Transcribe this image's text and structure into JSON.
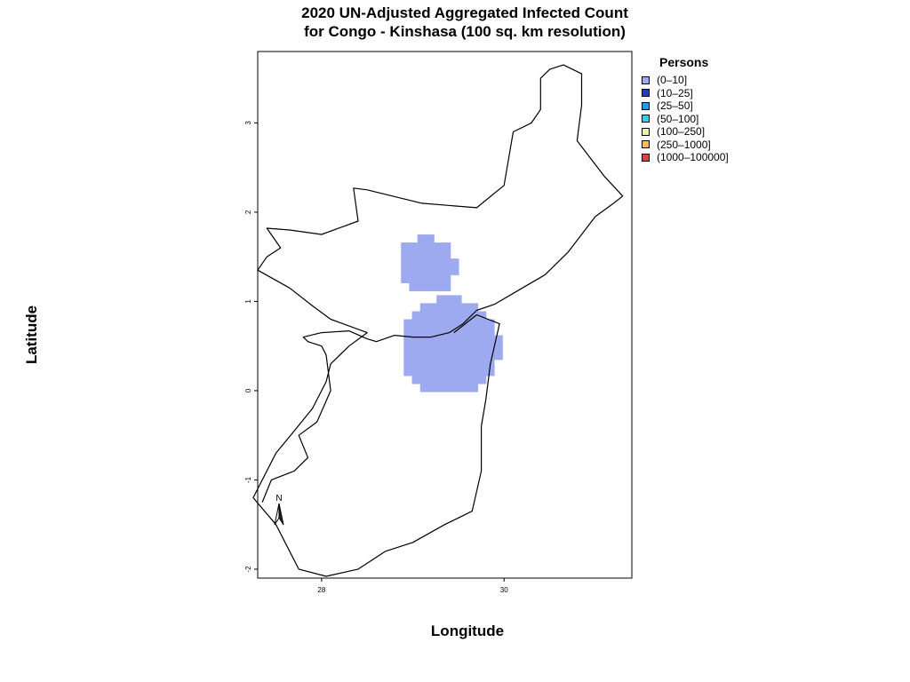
{
  "title_line1": "2020 UN-Adjusted Aggregated Infected Count",
  "title_line2": "for Congo - Kinshasa (100 sq. km resolution)",
  "xlabel": "Longitude",
  "ylabel": "Latitude",
  "legend": {
    "title": "Persons",
    "items": [
      {
        "label": "(0–10]",
        "color": "#9daaef"
      },
      {
        "label": "(10–25]",
        "color": "#1c3fcc"
      },
      {
        "label": "(25–50]",
        "color": "#1e9ee6"
      },
      {
        "label": "(50–100]",
        "color": "#33d1ee"
      },
      {
        "label": "(100–250]",
        "color": "#e6f5a0"
      },
      {
        "label": "(250–1000]",
        "color": "#f5c050"
      },
      {
        "label": "(1000–100000]",
        "color": "#e04040"
      }
    ]
  },
  "chart_data": {
    "type": "heatmap",
    "xlim": [
      27.3,
      31.4
    ],
    "ylim": [
      -2.1,
      3.8
    ],
    "x_ticks": [
      28,
      30
    ],
    "y_ticks": [
      -2,
      -1,
      0,
      1,
      2,
      3
    ],
    "north_arrow_label": "N",
    "cell_size_deg": 0.09,
    "fill_color": "#9daaef",
    "class_shown": "(0–10]",
    "clusters": [
      {
        "center_lon": 29.1,
        "center_lat": 1.35,
        "radius_deg": 0.32
      },
      {
        "center_lon": 29.36,
        "center_lat": 0.45,
        "radius_deg": 0.55
      }
    ],
    "boundary_outline": [
      [
        27.35,
        -1.25
      ],
      [
        27.45,
        -1.0
      ],
      [
        27.7,
        -0.9
      ],
      [
        27.85,
        -0.75
      ],
      [
        27.75,
        -0.5
      ],
      [
        27.95,
        -0.35
      ],
      [
        28.1,
        0.0
      ],
      [
        28.05,
        0.4
      ],
      [
        28.0,
        0.5
      ],
      [
        27.85,
        0.55
      ],
      [
        27.8,
        0.6
      ],
      [
        28.0,
        0.65
      ],
      [
        28.3,
        0.67
      ],
      [
        28.5,
        0.58
      ],
      [
        28.6,
        0.55
      ],
      [
        28.8,
        0.62
      ],
      [
        29.0,
        0.6
      ],
      [
        29.2,
        0.6
      ],
      [
        29.4,
        0.65
      ],
      [
        29.55,
        0.75
      ],
      [
        29.7,
        0.9
      ],
      [
        29.9,
        0.97
      ],
      [
        30.2,
        1.15
      ],
      [
        30.45,
        1.3
      ],
      [
        30.7,
        1.55
      ],
      [
        30.85,
        1.75
      ],
      [
        31.0,
        1.95
      ],
      [
        31.2,
        2.1
      ],
      [
        31.3,
        2.18
      ],
      [
        31.1,
        2.4
      ],
      [
        30.8,
        2.8
      ],
      [
        30.85,
        3.2
      ],
      [
        30.85,
        3.55
      ],
      [
        30.65,
        3.65
      ],
      [
        30.5,
        3.6
      ],
      [
        30.4,
        3.5
      ],
      [
        30.4,
        3.15
      ],
      [
        30.3,
        3.0
      ],
      [
        30.1,
        2.9
      ],
      [
        30.0,
        2.3
      ],
      [
        29.7,
        2.05
      ],
      [
        29.1,
        2.1
      ],
      [
        28.5,
        2.25
      ],
      [
        28.35,
        2.27
      ],
      [
        28.4,
        1.9
      ],
      [
        28.0,
        1.75
      ],
      [
        27.65,
        1.8
      ],
      [
        27.4,
        1.82
      ],
      [
        27.55,
        1.6
      ],
      [
        27.4,
        1.5
      ],
      [
        27.3,
        1.35
      ],
      [
        27.65,
        1.15
      ],
      [
        27.9,
        0.95
      ],
      [
        28.1,
        0.8
      ],
      [
        28.5,
        0.65
      ],
      [
        28.3,
        0.5
      ],
      [
        28.1,
        0.3
      ],
      [
        28.05,
        0.1
      ],
      [
        27.9,
        -0.2
      ],
      [
        27.7,
        -0.45
      ],
      [
        27.5,
        -0.7
      ],
      [
        27.25,
        -1.2
      ],
      [
        27.5,
        -1.5
      ],
      [
        27.6,
        -1.7
      ],
      [
        27.75,
        -2.0
      ],
      [
        28.05,
        -2.08
      ],
      [
        28.4,
        -2.0
      ],
      [
        28.7,
        -1.8
      ],
      [
        29.0,
        -1.7
      ],
      [
        29.35,
        -1.5
      ],
      [
        29.65,
        -1.35
      ],
      [
        29.75,
        -0.9
      ],
      [
        29.75,
        -0.4
      ],
      [
        29.8,
        -0.1
      ],
      [
        29.85,
        0.3
      ],
      [
        29.95,
        0.75
      ],
      [
        29.7,
        0.85
      ],
      [
        29.45,
        0.65
      ]
    ]
  }
}
